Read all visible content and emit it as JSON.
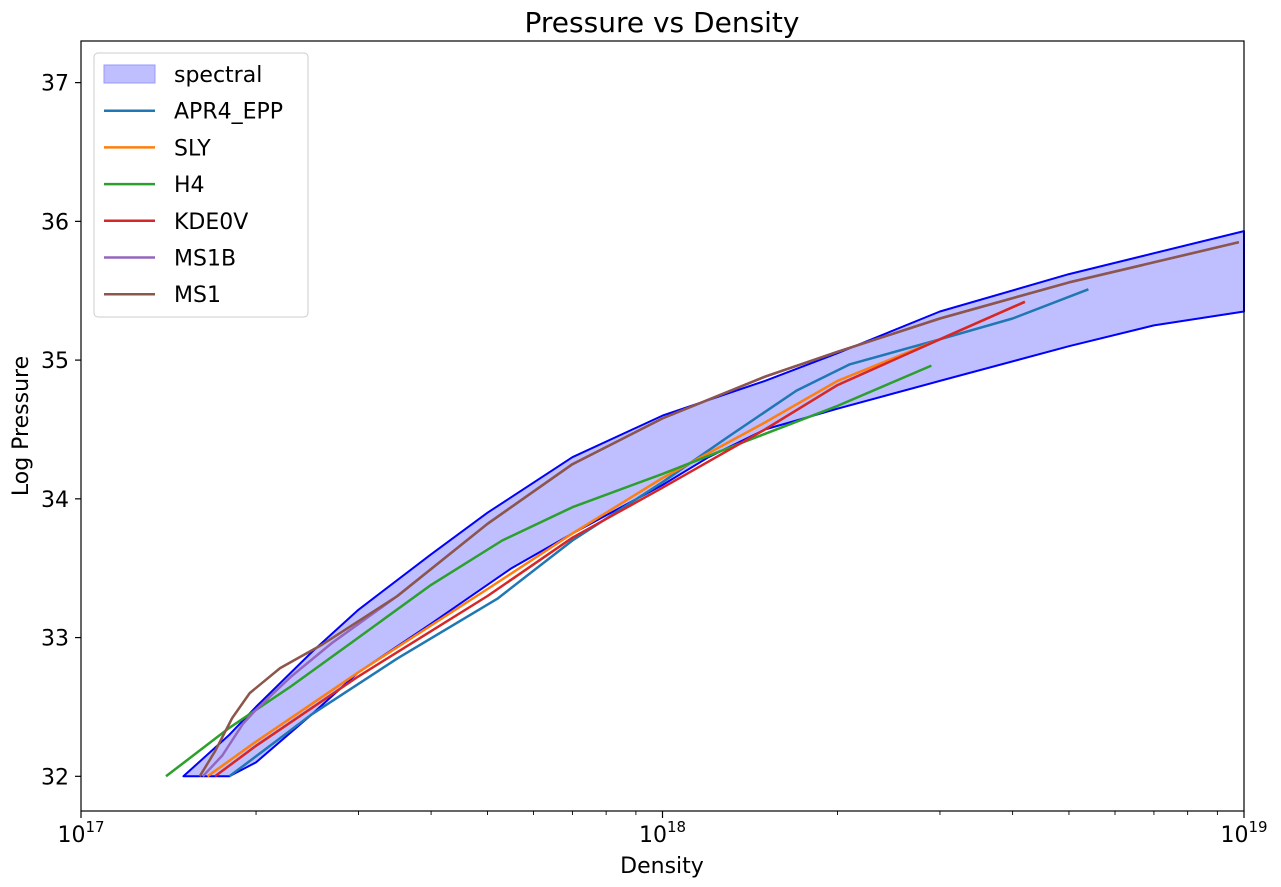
{
  "chart_data": {
    "type": "line",
    "title": "Pressure vs Density",
    "xlabel": "Density",
    "ylabel": "Log Pressure",
    "xscale": "log",
    "xlim": [
      1e+17,
      1e+19
    ],
    "ylim": [
      31.75,
      37.3
    ],
    "x_ticks": [
      {
        "value": 1e+17,
        "base": "10",
        "exp": "17"
      },
      {
        "value": 1e+18,
        "base": "10",
        "exp": "18"
      },
      {
        "value": 1e+19,
        "base": "10",
        "exp": "19"
      }
    ],
    "y_ticks": [
      {
        "value": 32,
        "label": "32"
      },
      {
        "value": 33,
        "label": "33"
      },
      {
        "value": 34,
        "label": "34"
      },
      {
        "value": 35,
        "label": "35"
      },
      {
        "value": 36,
        "label": "36"
      },
      {
        "value": 37,
        "label": "37"
      }
    ],
    "grid": false,
    "legend_position": "top-left",
    "band": {
      "name": "spectral",
      "fill": "#bfbfff",
      "edge": "#0000ff",
      "upper": [
        [
          1.5e+17,
          32.0
        ],
        [
          1.8e+17,
          32.3
        ],
        [
          2e+17,
          32.5
        ],
        [
          2.5e+17,
          32.9
        ],
        [
          3e+17,
          33.2
        ],
        [
          4e+17,
          33.6
        ],
        [
          5e+17,
          33.9
        ],
        [
          7e+17,
          34.3
        ],
        [
          1e+18,
          34.6
        ],
        [
          1.5e+18,
          34.85
        ],
        [
          2e+18,
          35.05
        ],
        [
          3e+18,
          35.35
        ],
        [
          5e+18,
          35.62
        ],
        [
          1e+19,
          35.93
        ]
      ],
      "lower": [
        [
          1e+19,
          35.35
        ],
        [
          7e+18,
          35.25
        ],
        [
          5e+18,
          35.1
        ],
        [
          3e+18,
          34.85
        ],
        [
          2e+18,
          34.65
        ],
        [
          1.5e+18,
          34.5
        ],
        [
          1.2e+18,
          34.3
        ],
        [
          1e+18,
          34.1
        ],
        [
          7e+17,
          33.75
        ],
        [
          5.5e+17,
          33.5
        ],
        [
          4e+17,
          33.1
        ],
        [
          3e+17,
          32.75
        ],
        [
          2.5e+17,
          32.45
        ],
        [
          2e+17,
          32.1
        ],
        [
          1.8e+17,
          32.0
        ]
      ]
    },
    "series": [
      {
        "name": "APR4_EPP",
        "color": "#1f77b4",
        "points": [
          [
            1.8e+17,
            32.0
          ],
          [
            2.5e+17,
            32.45
          ],
          [
            3.5e+17,
            32.85
          ],
          [
            5.2e+17,
            33.28
          ],
          [
            7e+17,
            33.7
          ],
          [
            1e+18,
            34.12
          ],
          [
            1.3e+18,
            34.45
          ],
          [
            1.7e+18,
            34.78
          ],
          [
            2.1e+18,
            34.97
          ],
          [
            3e+18,
            35.15
          ],
          [
            4e+18,
            35.3
          ],
          [
            5.4e+18,
            35.51
          ]
        ]
      },
      {
        "name": "SLY",
        "color": "#ff7f0e",
        "points": [
          [
            1.65e+17,
            32.0
          ],
          [
            2e+17,
            32.25
          ],
          [
            3e+17,
            32.75
          ],
          [
            5e+17,
            33.35
          ],
          [
            7e+17,
            33.75
          ],
          [
            1e+18,
            34.15
          ],
          [
            1.5e+18,
            34.55
          ],
          [
            2e+18,
            34.85
          ],
          [
            3e+18,
            35.15
          ],
          [
            4.2e+18,
            35.42
          ]
        ]
      },
      {
        "name": "H4",
        "color": "#2ca02c",
        "points": [
          [
            1.4e+17,
            32.0
          ],
          [
            1.8e+17,
            32.35
          ],
          [
            2.3e+17,
            32.65
          ],
          [
            3e+17,
            33.0
          ],
          [
            4e+17,
            33.38
          ],
          [
            5.3e+17,
            33.7
          ],
          [
            7e+17,
            33.94
          ],
          [
            1e+18,
            34.18
          ],
          [
            1.4e+18,
            34.42
          ],
          [
            2e+18,
            34.67
          ],
          [
            2.9e+18,
            34.96
          ]
        ]
      },
      {
        "name": "KDE0V",
        "color": "#d62728",
        "points": [
          [
            1.7e+17,
            32.0
          ],
          [
            2e+17,
            32.22
          ],
          [
            3e+17,
            32.72
          ],
          [
            5e+17,
            33.3
          ],
          [
            7e+17,
            33.72
          ],
          [
            1e+18,
            34.08
          ],
          [
            1.5e+18,
            34.5
          ],
          [
            2e+18,
            34.82
          ],
          [
            3e+18,
            35.15
          ],
          [
            4.2e+18,
            35.42
          ]
        ]
      },
      {
        "name": "MS1B",
        "color": "#9467bd",
        "points": [
          [
            1.62e+17,
            32.0
          ],
          [
            1.75e+17,
            32.15
          ],
          [
            1.9e+17,
            32.38
          ],
          [
            2e+17,
            32.48
          ],
          [
            2.3e+17,
            32.72
          ],
          [
            2.7e+17,
            32.96
          ],
          [
            3.5e+17,
            33.3
          ],
          [
            5e+17,
            33.82
          ],
          [
            7e+17,
            34.25
          ],
          [
            1e+18,
            34.58
          ],
          [
            1.5e+18,
            34.88
          ],
          [
            2e+18,
            35.06
          ],
          [
            3e+18,
            35.3
          ],
          [
            5e+18,
            35.56
          ],
          [
            9.8e+18,
            35.85
          ]
        ]
      },
      {
        "name": "MS1",
        "color": "#8c564b",
        "points": [
          [
            1.6e+17,
            32.0
          ],
          [
            1.7e+17,
            32.18
          ],
          [
            1.82e+17,
            32.42
          ],
          [
            1.95e+17,
            32.6
          ],
          [
            2.2e+17,
            32.78
          ],
          [
            2.6e+17,
            32.95
          ],
          [
            3.5e+17,
            33.3
          ],
          [
            5e+17,
            33.82
          ],
          [
            7e+17,
            34.25
          ],
          [
            1e+18,
            34.58
          ],
          [
            1.5e+18,
            34.88
          ],
          [
            2e+18,
            35.06
          ],
          [
            3e+18,
            35.3
          ],
          [
            5e+18,
            35.56
          ],
          [
            9.8e+18,
            35.85
          ]
        ]
      }
    ]
  }
}
